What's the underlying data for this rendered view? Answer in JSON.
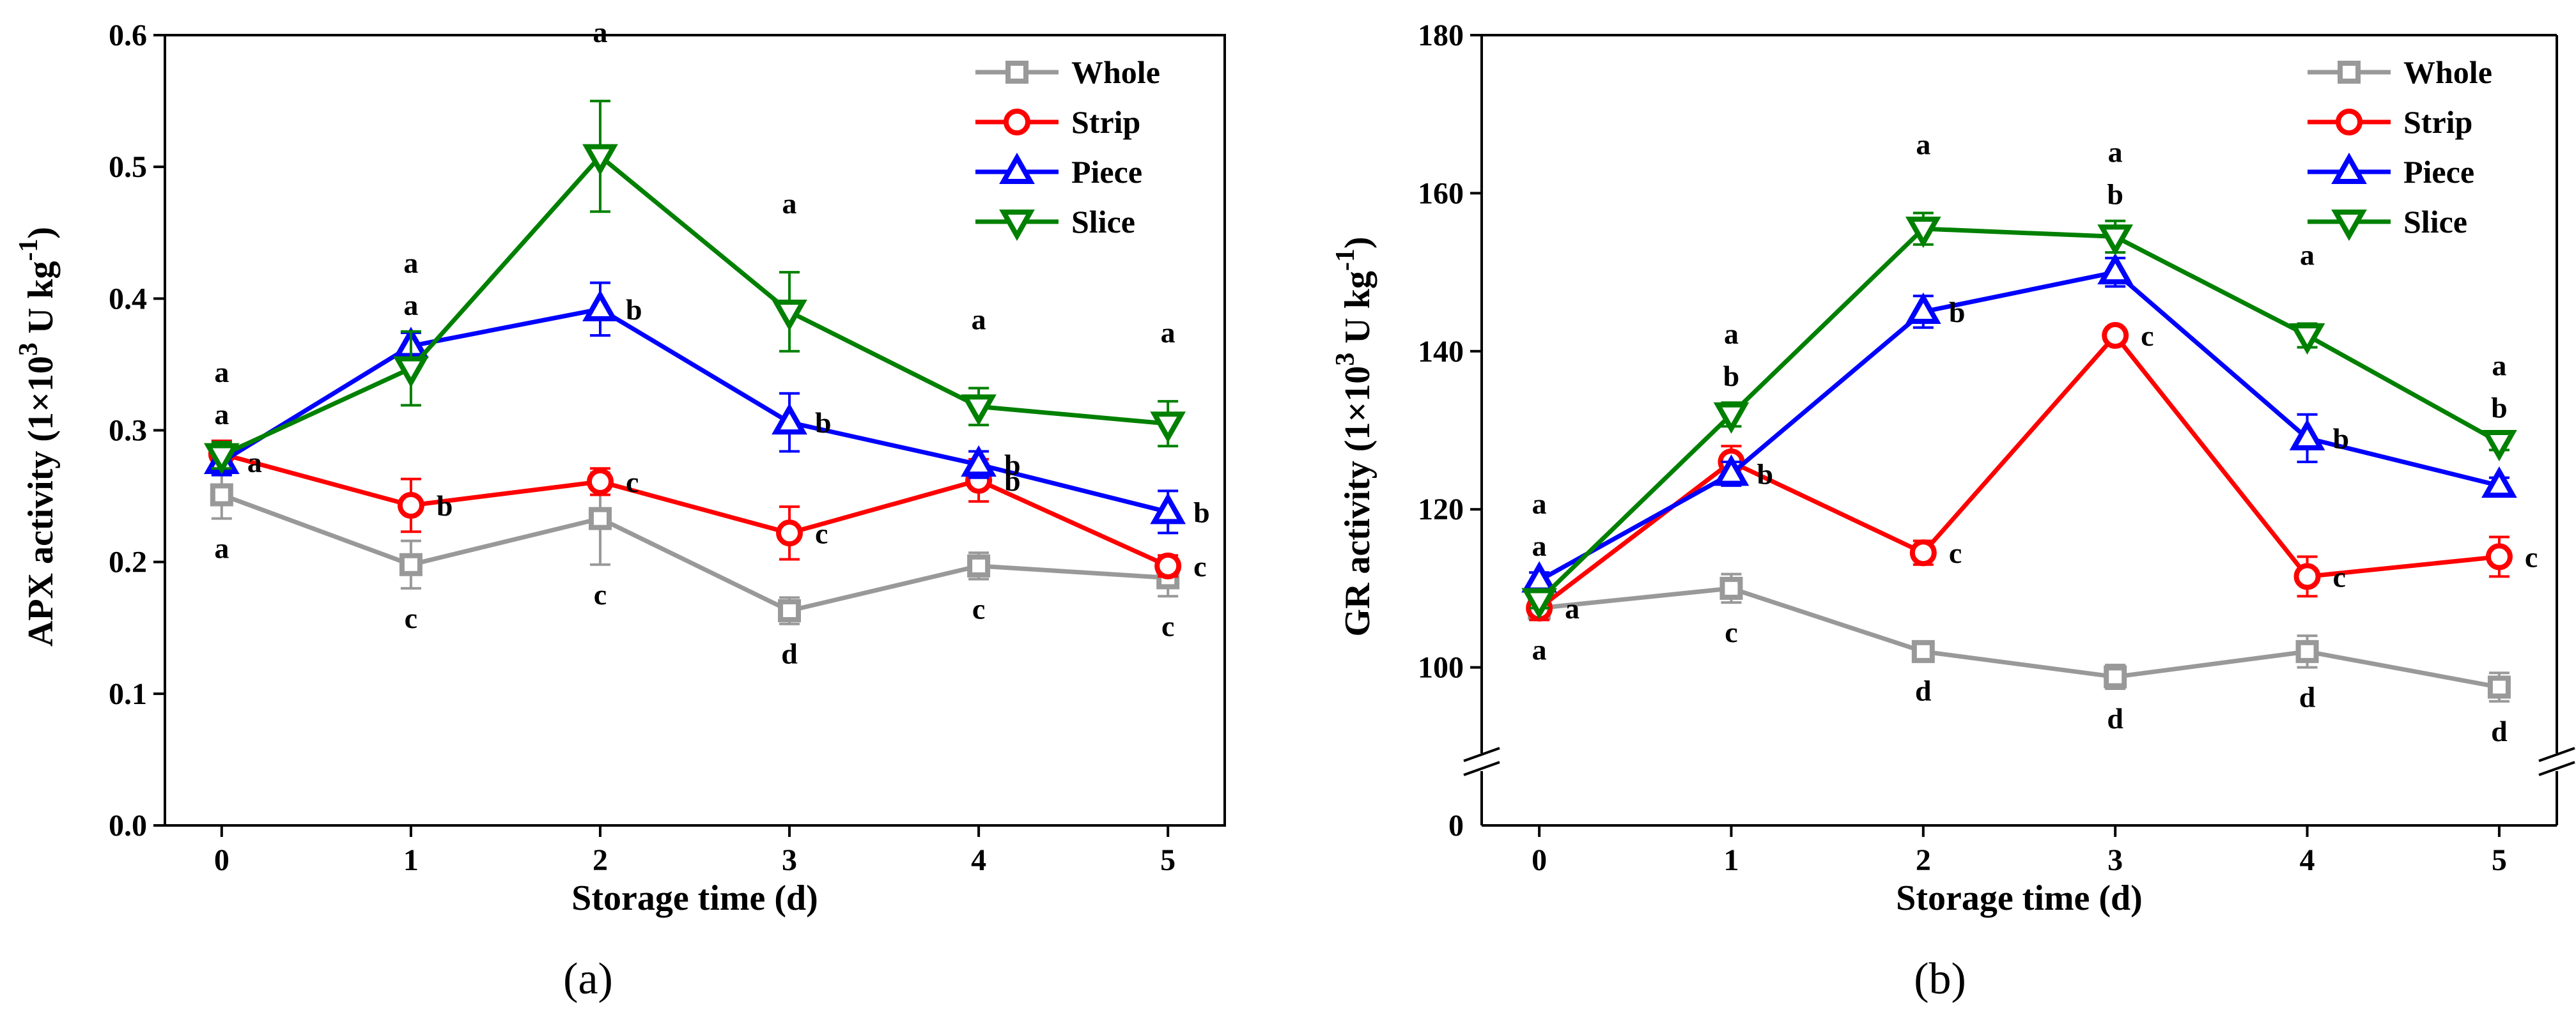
{
  "chart_data": [
    {
      "id": "a",
      "type": "line",
      "panel_label": "(a)",
      "xlabel": "Storage time (d)",
      "ylabel": "APX activity (1×10³ U kg⁻¹)",
      "ylabel_parts": {
        "main": "APX activity (1×10",
        "sup1": "3",
        "mid": " U kg",
        "sup2": "-1",
        "end": ")"
      },
      "x": [
        0,
        1,
        2,
        3,
        4,
        5
      ],
      "xlim": [
        -0.3,
        5.3
      ],
      "ylim": [
        0,
        0.6
      ],
      "yticks": [
        0.0,
        0.1,
        0.2,
        0.3,
        0.4,
        0.5,
        0.6
      ],
      "ytick_labels": [
        "0.0",
        "0.1",
        "0.2",
        "0.3",
        "0.4",
        "0.5",
        "0.6"
      ],
      "axis_break": false,
      "legend_position": "top-right",
      "series": [
        {
          "name": "Whole",
          "color": "#999999",
          "marker": "square",
          "values": [
            0.251,
            0.198,
            0.233,
            0.163,
            0.197,
            0.188
          ],
          "errors": [
            0.018,
            0.018,
            0.035,
            0.01,
            0.01,
            0.014
          ],
          "letters": [
            "a",
            "c",
            "c",
            "d",
            "c",
            "c"
          ]
        },
        {
          "name": "Strip",
          "color": "#ff0000",
          "marker": "circle",
          "values": [
            0.282,
            0.243,
            0.261,
            0.222,
            0.262,
            0.197
          ],
          "errors": [
            0.01,
            0.02,
            0.01,
            0.02,
            0.016,
            0.008
          ],
          "letters": [
            "a",
            "b",
            "c",
            "c",
            "b",
            "c"
          ]
        },
        {
          "name": "Piece",
          "color": "#0000ff",
          "marker": "triangle-up",
          "values": [
            0.276,
            0.364,
            0.392,
            0.306,
            0.274,
            0.238
          ],
          "errors": [
            0.01,
            0.01,
            0.02,
            0.022,
            0.01,
            0.016
          ],
          "letters": [
            "a",
            "a",
            "b",
            "b",
            "b",
            "b"
          ]
        },
        {
          "name": "Slice",
          "color": "#008000",
          "marker": "triangle-down",
          "values": [
            0.281,
            0.347,
            0.508,
            0.39,
            0.318,
            0.305
          ],
          "errors": [
            0.01,
            0.028,
            0.042,
            0.03,
            0.014,
            0.017
          ],
          "letters": [
            "a",
            "a",
            "a",
            "a",
            "a",
            "a"
          ]
        }
      ]
    },
    {
      "id": "b",
      "type": "line",
      "panel_label": "(b)",
      "xlabel": "Storage time (d)",
      "ylabel": "GR activity (1×10³ U kg⁻¹)",
      "ylabel_parts": {
        "main": "GR activity (1×10",
        "sup1": "3",
        "mid": " U kg",
        "sup2": "-1",
        "end": ")"
      },
      "x": [
        0,
        1,
        2,
        3,
        4,
        5
      ],
      "xlim": [
        -0.3,
        5.3
      ],
      "ylim": [
        80,
        180
      ],
      "yticks": [
        100,
        120,
        140,
        160,
        180
      ],
      "ytick_labels": [
        "100",
        "120",
        "140",
        "160",
        "180"
      ],
      "bottom_tick_label": "0",
      "axis_break": true,
      "axis_break_value": 88,
      "legend_position": "top-right",
      "series": [
        {
          "name": "Whole",
          "color": "#999999",
          "marker": "square",
          "values": [
            107.5,
            110,
            102,
            98.8,
            102,
            97.5
          ],
          "errors": [
            1,
            1.8,
            1.2,
            1.5,
            2,
            1.8
          ],
          "letters": [
            "a",
            "c",
            "d",
            "d",
            "d",
            "d"
          ]
        },
        {
          "name": "Strip",
          "color": "#ff0000",
          "marker": "circle",
          "values": [
            107.5,
            126,
            114.5,
            142,
            111.5,
            114
          ],
          "errors": [
            1.5,
            2,
            1.5,
            1,
            2.5,
            2.5
          ],
          "letters": [
            "a",
            "b",
            "c",
            "c",
            "c",
            "c"
          ]
        },
        {
          "name": "Piece",
          "color": "#0000ff",
          "marker": "triangle-up",
          "values": [
            111,
            124.5,
            145,
            150,
            129,
            123
          ],
          "errors": [
            1,
            1.5,
            2,
            1.8,
            3,
            1
          ],
          "letters": [
            "a",
            "b",
            "b",
            "b",
            "b",
            "b"
          ]
        },
        {
          "name": "Slice",
          "color": "#008000",
          "marker": "triangle-down",
          "values": [
            108.5,
            132,
            155.5,
            154.5,
            142,
            128.5
          ],
          "errors": [
            1,
            1.5,
            2,
            2,
            1.5,
            1
          ],
          "letters": [
            "a",
            "a",
            "a",
            "a",
            "a",
            "a"
          ]
        }
      ]
    }
  ]
}
